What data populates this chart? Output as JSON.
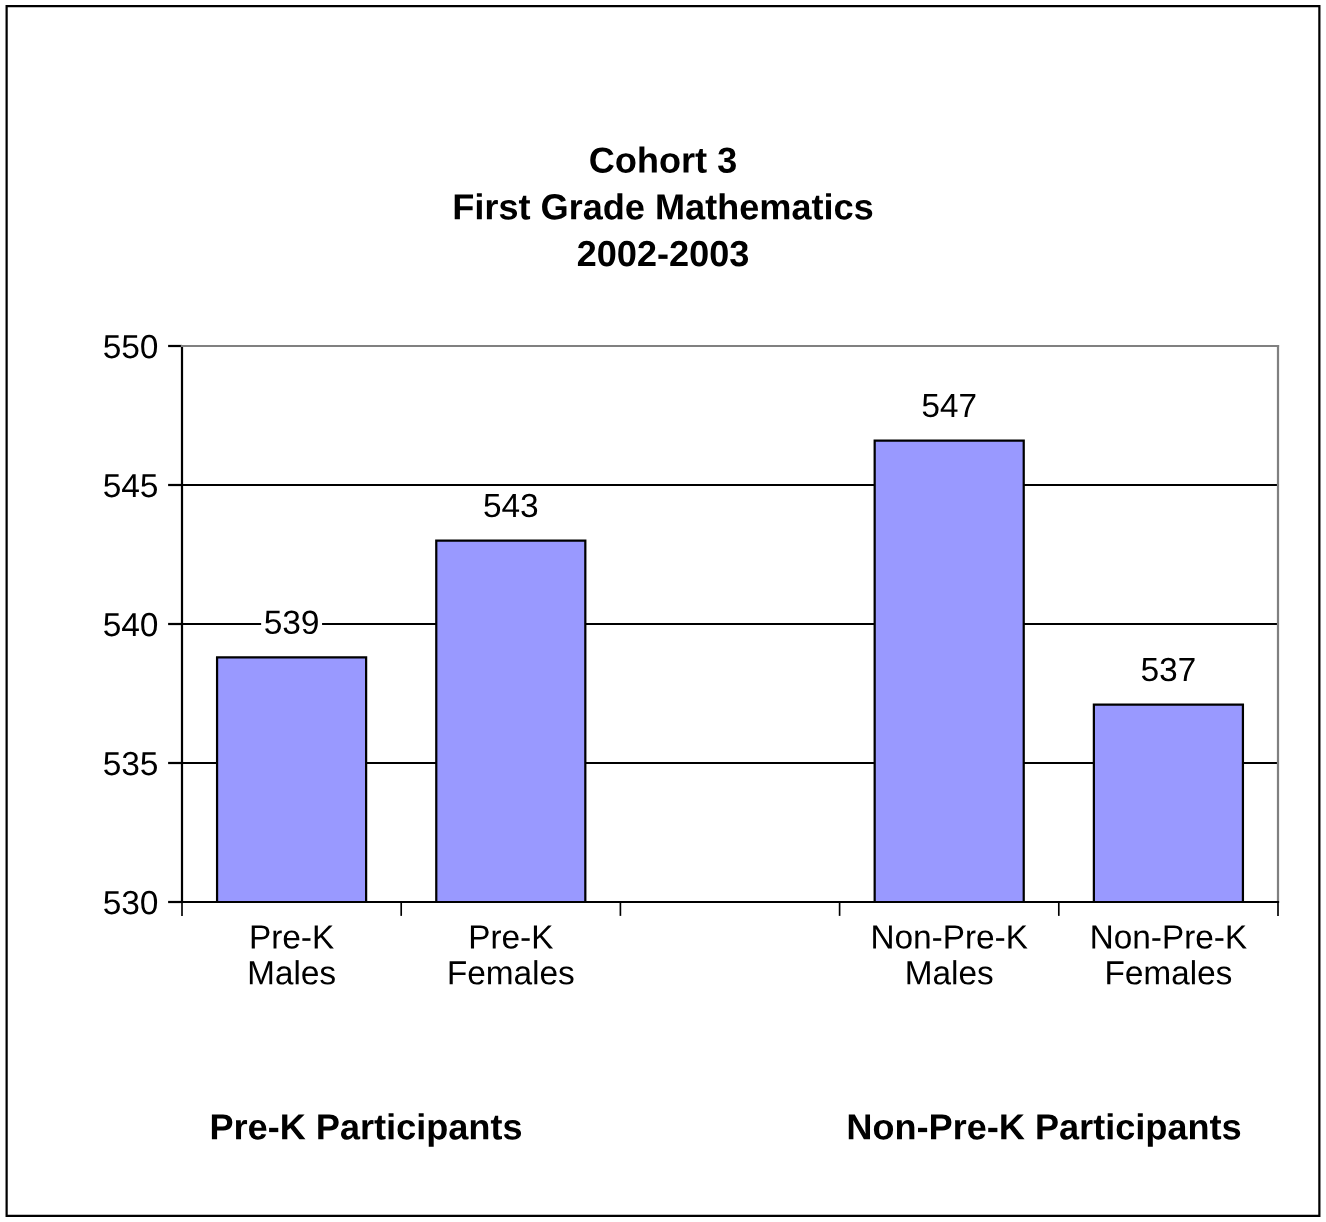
{
  "chart_data": {
    "type": "bar",
    "title": "Cohort 3\nFirst Grade Mathematics\n2002-2003",
    "categories": [
      "Pre-K\nMales",
      "Pre-K\nFemales",
      null,
      "Non-Pre-K\nMales",
      "Non-Pre-K\nFemales"
    ],
    "values": [
      538.8,
      543.0,
      null,
      546.6,
      537.1
    ],
    "value_labels": [
      "539",
      "543",
      null,
      "547",
      "537"
    ],
    "color": "#9999ff",
    "ylim": [
      530,
      550
    ],
    "yticks": [
      530,
      535,
      540,
      545,
      550
    ],
    "grid": "y",
    "annotations": [
      "Pre-K Participants",
      "Non-Pre-K Participants"
    ]
  }
}
